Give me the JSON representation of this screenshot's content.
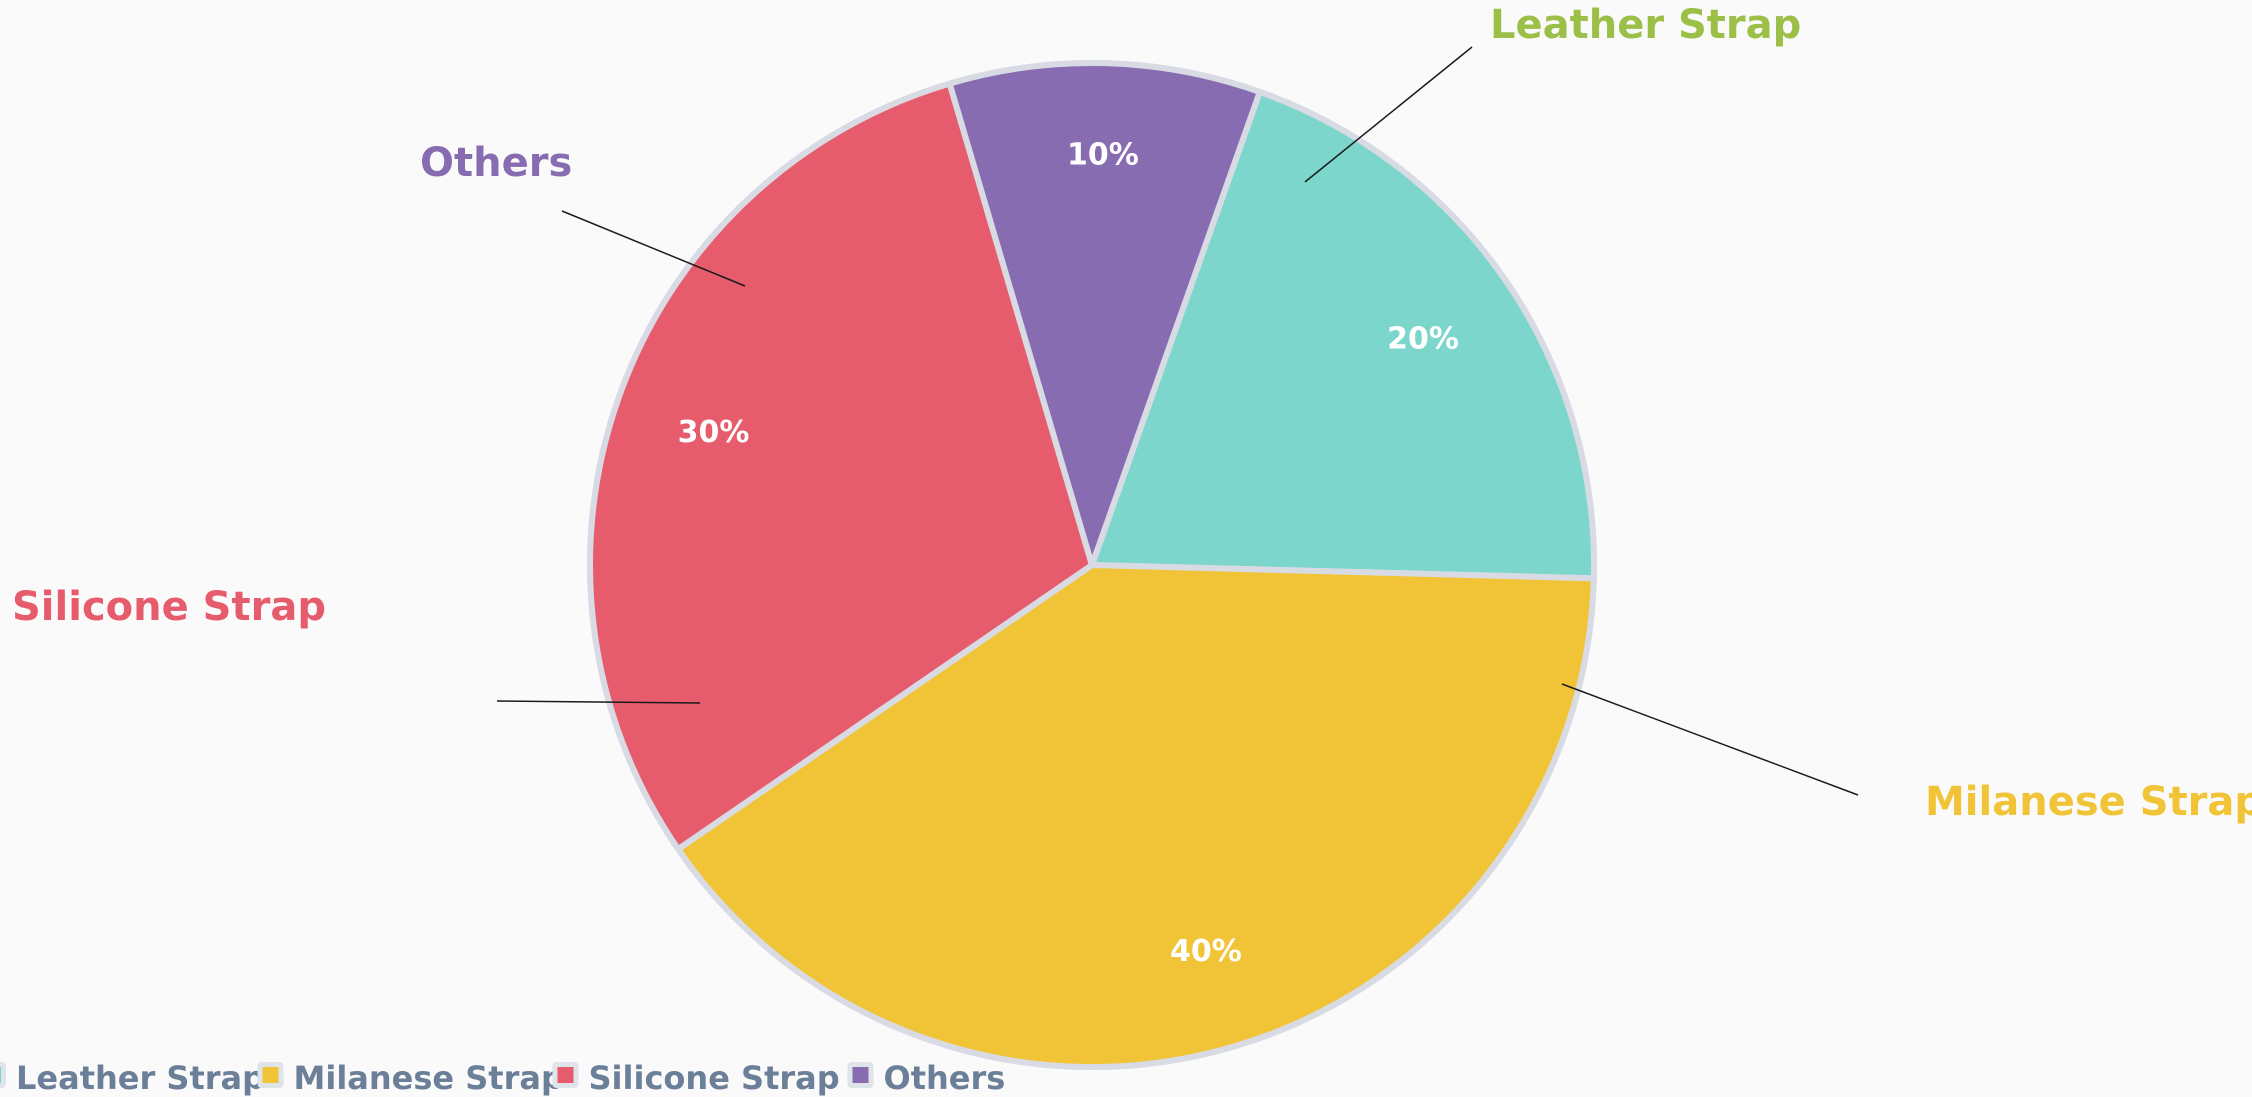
{
  "chart_data": {
    "type": "pie",
    "series": [
      {
        "name": "",
        "slices": [
          {
            "label": "Leather Strap",
            "value": 20,
            "value_label": "20%",
            "color": "#7dd6cc",
            "label_color": "#9bbf47"
          },
          {
            "label": "Milanese Strap",
            "value": 40,
            "value_label": "40%",
            "color": "#f1c438",
            "label_color": "#f1c438"
          },
          {
            "label": "Silicone Strap",
            "value": 30,
            "value_label": "30%",
            "color": "#e75c6d",
            "label_color": "#e75c6d"
          },
          {
            "label": "Others",
            "value": 10,
            "value_label": "10%",
            "color": "#886cb1",
            "label_color": "#886cb1"
          }
        ]
      }
    ],
    "legend": {
      "placement": "bottom-left",
      "items": [
        "Leather Strap",
        "Milanese Strap",
        "Silicone Strap",
        "Others"
      ]
    },
    "slice_border_color": "#d8dbe3",
    "leader_line_color": "#1a1a1a"
  }
}
